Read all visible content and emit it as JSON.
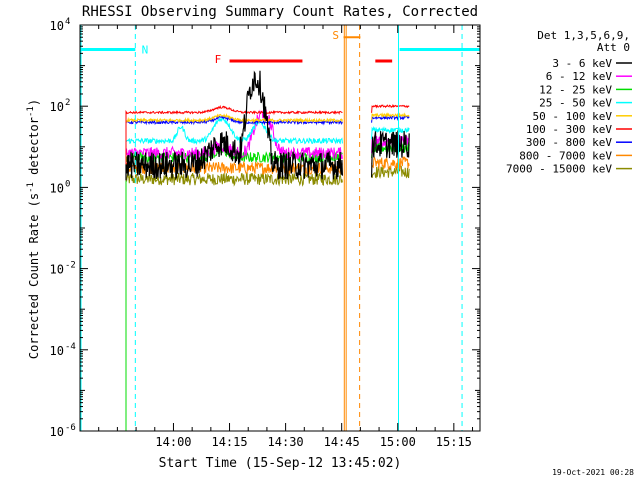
{
  "chart_data": {
    "type": "line",
    "title": "RHESSI Observing Summary Count Rates, Corrected",
    "xlabel": "Start Time (15-Sep-12 13:45:02)",
    "ylabel_main": "Corrected Count Rate (s",
    "ylabel_sup1": "-1",
    "ylabel_mid": " detector",
    "ylabel_sup2": "-1",
    "ylabel_end": ")",
    "footer": "19-Oct-2021 00:28",
    "x_range_minutes": [
      -10,
      97
    ],
    "x_start": "13:45:02",
    "y_scale": "log",
    "ylim": [
      1e-06,
      10000.0
    ],
    "x_ticks": [
      {
        "value": 15,
        "label": "14:00"
      },
      {
        "value": 30,
        "label": "14:15"
      },
      {
        "value": 45,
        "label": "14:30"
      },
      {
        "value": 60,
        "label": "14:45"
      },
      {
        "value": 75,
        "label": "15:00"
      },
      {
        "value": 90,
        "label": "15:15"
      }
    ],
    "y_ticks": [
      {
        "value": 1e-06,
        "base": "10",
        "exp": "-6"
      },
      {
        "value": 0.0001,
        "base": "10",
        "exp": "-4"
      },
      {
        "value": 0.01,
        "base": "10",
        "exp": "-2"
      },
      {
        "value": 1,
        "base": "10",
        "exp": "0"
      },
      {
        "value": 100,
        "base": "10",
        "exp": "2"
      },
      {
        "value": 10000,
        "base": "10",
        "exp": "4"
      }
    ],
    "legend_title_1": "Det 1,3,5,6,9,",
    "legend_title_2": "Att 0",
    "series": [
      {
        "name": "3 - 6 keV",
        "color": "#000000",
        "key": "ch0"
      },
      {
        "name": "6 - 12 keV",
        "color": "#ff00ff",
        "key": "ch1"
      },
      {
        "name": "12 - 25 keV",
        "color": "#00dd00",
        "key": "ch2"
      },
      {
        "name": "25 - 50 keV",
        "color": "#00ffff",
        "key": "ch3"
      },
      {
        "name": "50 - 100 keV",
        "color": "#ffcc00",
        "key": "ch4"
      },
      {
        "name": "100 - 300 keV",
        "color": "#ff0000",
        "key": "ch5"
      },
      {
        "name": "300 - 800 keV",
        "color": "#0000ff",
        "key": "ch6"
      },
      {
        "name": "800 - 7000 keV",
        "color": "#ff8800",
        "key": "ch7"
      },
      {
        "name": "7000 - 15000 keV",
        "color": "#8b8b00",
        "key": "ch8"
      }
    ],
    "annotations": {
      "night": {
        "label": "N",
        "color": "#00ffff",
        "bars": [
          [
            -10,
            4.8
          ],
          [
            75.5,
            97
          ]
        ],
        "level": 2500,
        "dashed_x": [
          4.8,
          92.2
        ],
        "solid_x": [
          75.2
        ]
      },
      "flare": {
        "label": "F",
        "color": "#ff0000",
        "bars": [
          [
            30,
            49.5
          ],
          [
            69,
            73.5
          ]
        ],
        "level": 1300
      },
      "saa": {
        "label": "S",
        "color": "#ff8800",
        "bars": [
          [
            60.5,
            65
          ]
        ],
        "level": 5000,
        "solid_x": [
          60.7,
          61.2
        ],
        "dashed_x": [
          64.8
        ]
      }
    },
    "segments": [
      [
        2.3,
        60.3
      ],
      [
        68.0,
        78.2
      ]
    ],
    "colors": {
      "axes": "#000000",
      "background": "#ffffff"
    }
  }
}
